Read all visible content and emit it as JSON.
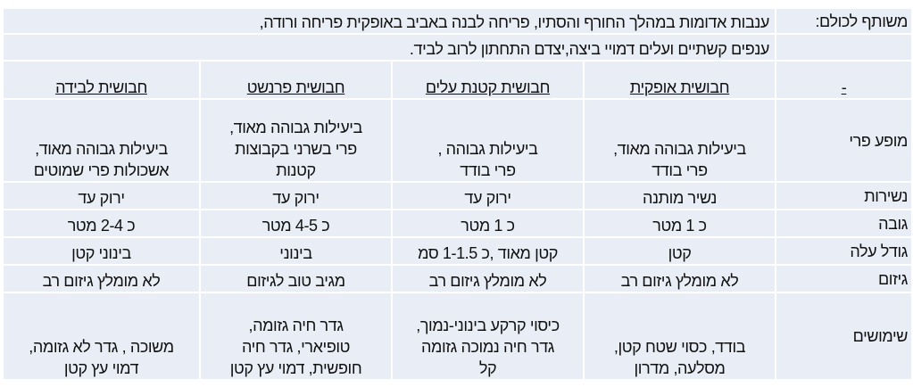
{
  "shared": {
    "label": "משותף לכולם:",
    "line1": "ענבות אדומות במהלך החורף והסתיו, פריחה לבנה באביב באופקית פריחה ורודה,",
    "line2": "ענפים קשתיים ועלים דמויי ביצה,יצדם התחתון לרוב לביד."
  },
  "columns": [
    "-",
    "חבושית אופקית",
    "חבושית קטנת עלים",
    "חבושית פרנשט",
    "חבושית לבידה"
  ],
  "rows": [
    {
      "label": "מופע פרי",
      "cells": [
        "ביעילות גבוהה מאוד,\nפרי בודד",
        "ביעילות גבוהה ,\nפרי בודד",
        "ביעילות גבוהה מאוד,\nפרי בשרני בקבוצות\nקטנות",
        "ביעילות גבוהה מאוד,\nאשכולות פרי שמוטים"
      ]
    },
    {
      "label": "נשירות",
      "cells": [
        "נשיר מותנה",
        "ירוק עד",
        "ירוק עד",
        "ירוק עד"
      ]
    },
    {
      "label": "גובה",
      "cells": [
        "כ 1 מטר",
        "כ 1 מטר",
        "כ 4-5 מטר",
        "כ 2-4 מטר"
      ]
    },
    {
      "label": "גודל עלה",
      "cells": [
        "קטן",
        "קטן מאוד ,כ 1-1.5 סמ",
        "בינוני",
        "בינוני קטן"
      ]
    },
    {
      "label": "גיזום",
      "cells": [
        "לא מומלץ גיזום רב",
        "לא מומלץ גיזום רב",
        "מגיב טוב לגיזום",
        "לא מומלץ גיזום רב"
      ]
    },
    {
      "label": "שימושים",
      "cells": [
        "בודד, כסוי שטח קטן,\nמסלעה, מדרון",
        "כיסוי קרקע בינוני-נמוך,\nגדר חיה נמוכה גזומה\nקל",
        "גדר חיה גזומה,\nטופיארי, גדר חיה\nחופשית, דמוי עץ קטן",
        "משוכה , גדר לא גזומה,\nדמוי עץ קטן"
      ]
    }
  ]
}
